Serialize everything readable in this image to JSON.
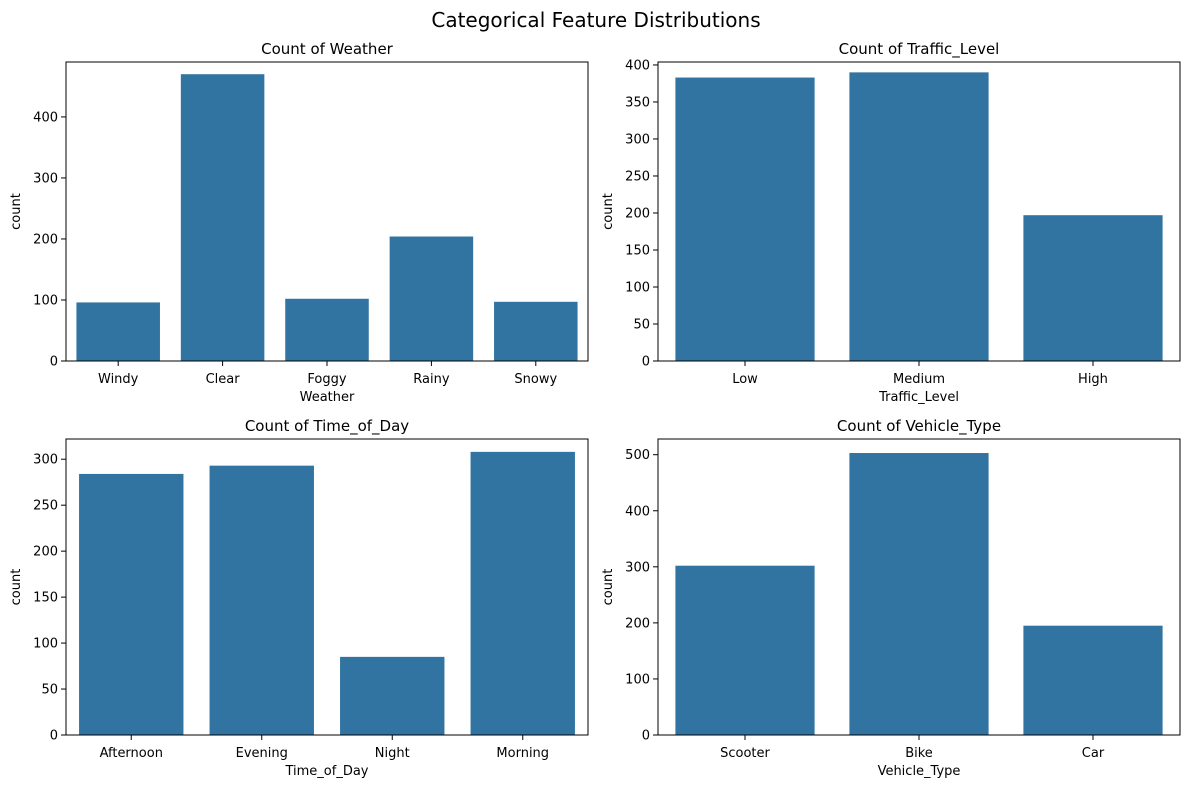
{
  "figure": {
    "suptitle": "Categorical Feature Distributions",
    "bar_color": "#3274a1"
  },
  "chart_data": [
    {
      "type": "bar",
      "title": "Count of Weather",
      "xlabel": "Weather",
      "ylabel": "count",
      "categories": [
        "Windy",
        "Clear",
        "Foggy",
        "Rainy",
        "Snowy"
      ],
      "values": [
        96,
        470,
        102,
        204,
        97
      ],
      "ylim": [
        0,
        490
      ],
      "yticks": [
        0,
        100,
        200,
        300,
        400
      ]
    },
    {
      "type": "bar",
      "title": "Count of Traffic_Level",
      "xlabel": "Traffic_Level",
      "ylabel": "count",
      "categories": [
        "Low",
        "Medium",
        "High"
      ],
      "values": [
        383,
        390,
        197
      ],
      "ylim": [
        0,
        404
      ],
      "yticks": [
        0,
        50,
        100,
        150,
        200,
        250,
        300,
        350,
        400
      ]
    },
    {
      "type": "bar",
      "title": "Count of Time_of_Day",
      "xlabel": "Time_of_Day",
      "ylabel": "count",
      "categories": [
        "Afternoon",
        "Evening",
        "Night",
        "Morning"
      ],
      "values": [
        284,
        293,
        85,
        308
      ],
      "ylim": [
        0,
        322
      ],
      "yticks": [
        0,
        50,
        100,
        150,
        200,
        250,
        300
      ]
    },
    {
      "type": "bar",
      "title": "Count of Vehicle_Type",
      "xlabel": "Vehicle_Type",
      "ylabel": "count",
      "categories": [
        "Scooter",
        "Bike",
        "Car"
      ],
      "values": [
        302,
        503,
        195
      ],
      "ylim": [
        0,
        528
      ],
      "yticks": [
        0,
        100,
        200,
        300,
        400,
        500
      ]
    }
  ]
}
